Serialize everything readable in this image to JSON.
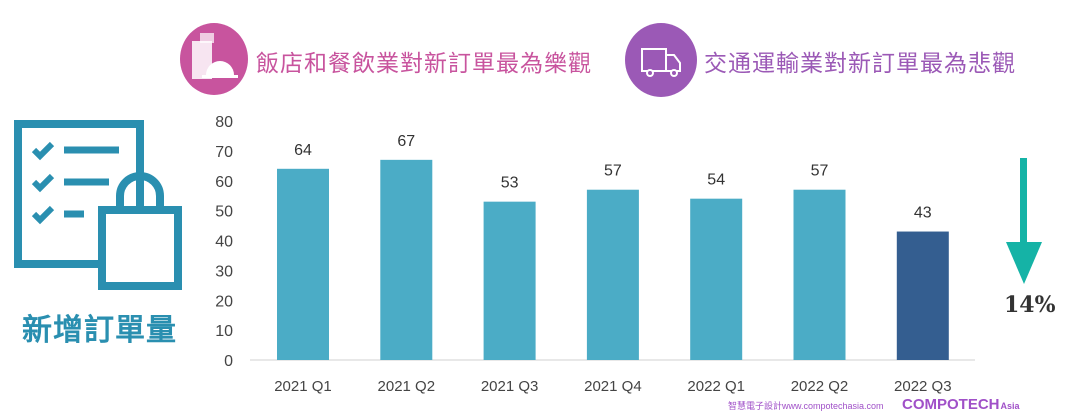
{
  "headers": {
    "left": "飯店和餐飲業對新訂單最為樂觀",
    "right": "交通運輸業對新訂單最為悲觀"
  },
  "side_label": "新增訂單量",
  "change_label": "14%",
  "watermark": {
    "brand": "COMPOTECH",
    "suffix": "Asia",
    "tagline": "智慧電子設計www.compotechasia.com"
  },
  "colors": {
    "bar": "#4bacc6",
    "highlight": "#345e90",
    "arrow": "#15b3a6",
    "pink": "#c8549e",
    "purple": "#9b59b6"
  },
  "chart_data": {
    "type": "bar",
    "categories": [
      "2021 Q1",
      "2021 Q2",
      "2021 Q3",
      "2021 Q4",
      "2022 Q1",
      "2022 Q2",
      "2022 Q3"
    ],
    "values": [
      64,
      67,
      53,
      57,
      54,
      57,
      43
    ],
    "ylim": [
      0,
      80
    ],
    "yticks": [
      "0",
      "10",
      "20",
      "30",
      "40",
      "50",
      "60",
      "70",
      "80"
    ],
    "highlight_index": 6,
    "title": "",
    "xlabel": "",
    "ylabel": ""
  }
}
